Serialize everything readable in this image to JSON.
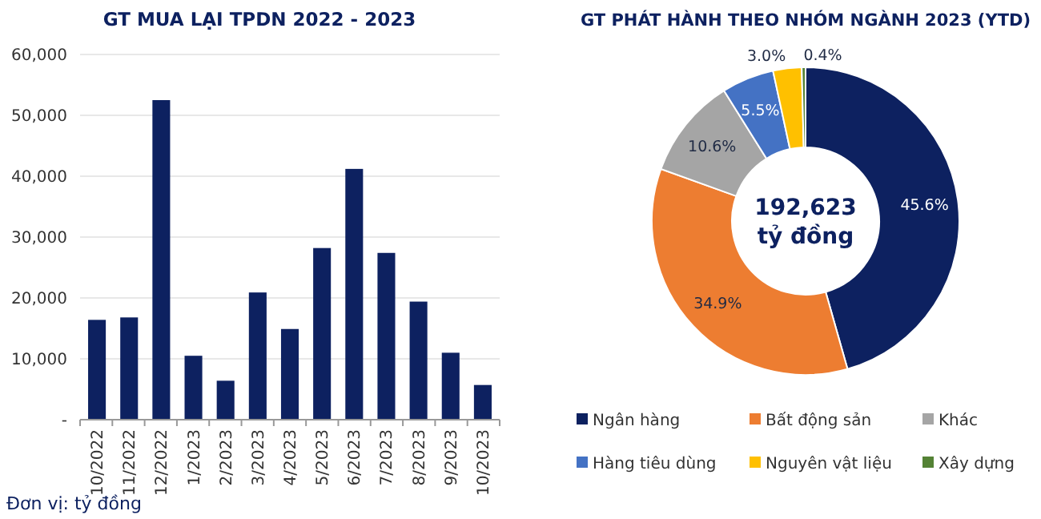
{
  "chart_data": [
    {
      "type": "bar",
      "title": "GT MUA LẠI TPDN 2022 - 2023",
      "categories": [
        "10/2022",
        "11/2022",
        "12/2022",
        "1/2023",
        "2/2023",
        "3/2023",
        "4/2023",
        "5/2023",
        "6/2023",
        "7/2023",
        "8/2023",
        "9/2023",
        "10/2023"
      ],
      "values": [
        16400,
        16800,
        52500,
        10500,
        6400,
        20900,
        14900,
        28200,
        41200,
        27400,
        19400,
        11000,
        5700
      ],
      "color": "#0d2160",
      "ylim": [
        0,
        60000
      ],
      "yticks": [
        {
          "value": 0,
          "label": "-"
        },
        {
          "value": 10000,
          "label": "10,000"
        },
        {
          "value": 20000,
          "label": "20,000"
        },
        {
          "value": 30000,
          "label": "30,000"
        },
        {
          "value": 40000,
          "label": "40,000"
        },
        {
          "value": 50000,
          "label": "50,000"
        },
        {
          "value": 60000,
          "label": "60,000"
        }
      ],
      "grid": "y",
      "annotations": [
        "Đơn vị: tỷ đồng"
      ]
    },
    {
      "type": "donut",
      "title": "GT PHÁT HÀNH THEO NHÓM NGÀNH 2023 (YTD)",
      "categories": [
        "Ngân hàng",
        "Bất động sản",
        "Khác",
        "Hàng tiêu dùng",
        "Nguyên vật liệu",
        "Xây dựng"
      ],
      "values": [
        45.6,
        34.9,
        10.6,
        5.5,
        3.0,
        0.4
      ],
      "value_labels": [
        "45.6%",
        "34.9%",
        "10.6%",
        "5.5%",
        "3.0%",
        "0.4%"
      ],
      "colors": [
        "#0d2160",
        "#ed7d31",
        "#a5a5a5",
        "#4472c4",
        "#ffc000",
        "#548235"
      ],
      "legend": "bottom",
      "annotations": [
        "192,623",
        "tỷ đồng"
      ]
    }
  ]
}
